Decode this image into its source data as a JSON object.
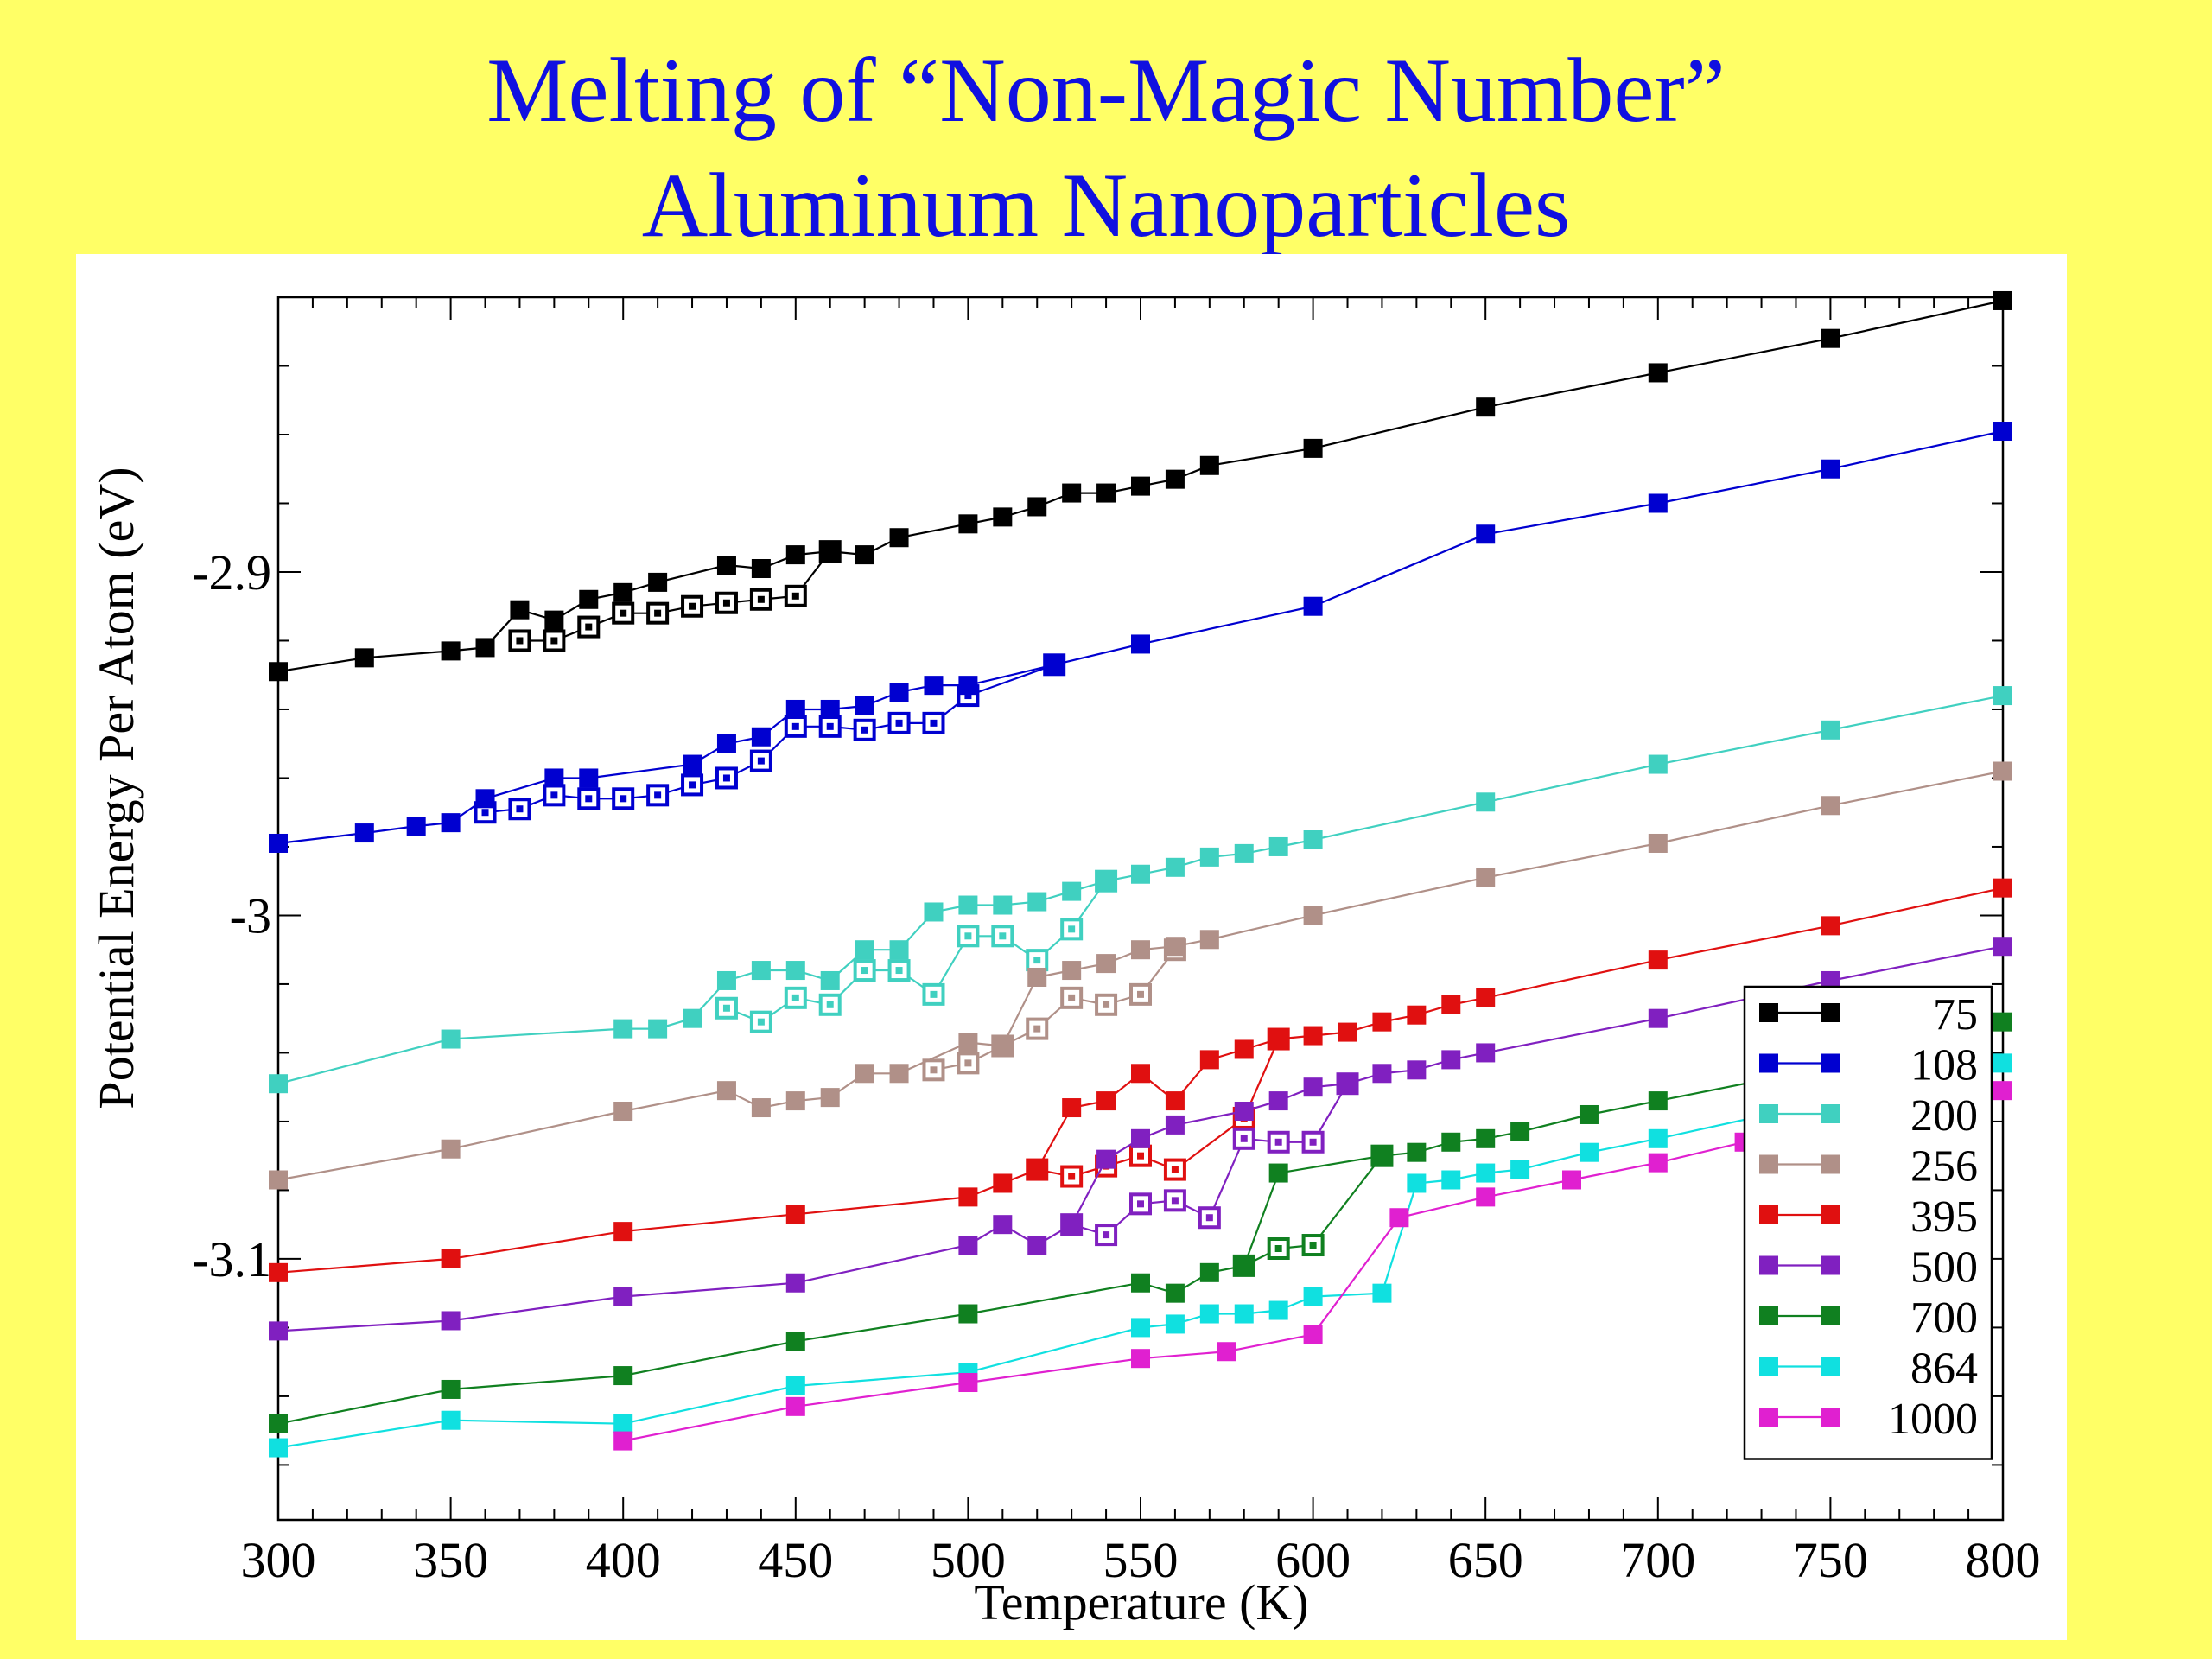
{
  "slide": {
    "title_line1": "Melting of “Non-Magic Number”",
    "title_line2": "Aluminum Nanoparticles",
    "background_color": "#ffff66",
    "title_color": "#1010e0"
  },
  "chart_data": {
    "type": "line",
    "xlabel": "Temperature (K)",
    "ylabel": "Potential Energy Per Atom (eV)",
    "xlim": [
      300,
      800
    ],
    "ylim": [
      -3.176,
      -2.82
    ],
    "x_ticks": [
      300,
      350,
      400,
      450,
      500,
      550,
      600,
      650,
      700,
      750,
      800
    ],
    "x_tick_labels": [
      "300",
      "350",
      "400",
      "450",
      "500",
      "550",
      "600",
      "650",
      "700",
      "750",
      "800"
    ],
    "y_ticks": [
      -2.9,
      -3.0,
      -3.1
    ],
    "y_tick_labels": [
      "-2.9",
      "-3",
      "-3.1"
    ],
    "grid": false,
    "legend_position": "bottom-right",
    "marker": "square",
    "series": [
      {
        "name": "75",
        "color": "#000000",
        "points": [
          [
            300,
            -2.929
          ],
          [
            325,
            -2.925
          ],
          [
            350,
            -2.923
          ],
          [
            360,
            -2.922
          ],
          [
            370,
            -2.911
          ],
          [
            380,
            -2.914
          ],
          [
            390,
            -2.908
          ],
          [
            400,
            -2.906
          ],
          [
            410,
            -2.903
          ],
          [
            430,
            -2.898
          ],
          [
            440,
            -2.899
          ],
          [
            450,
            -2.895
          ],
          [
            460,
            -2.894
          ],
          [
            470,
            -2.895
          ],
          [
            480,
            -2.89
          ],
          [
            500,
            -2.886
          ],
          [
            510,
            -2.884
          ],
          [
            520,
            -2.881
          ],
          [
            530,
            -2.877
          ],
          [
            540,
            -2.877
          ],
          [
            550,
            -2.875
          ],
          [
            560,
            -2.873
          ],
          [
            570,
            -2.869
          ],
          [
            600,
            -2.864
          ],
          [
            650,
            -2.852
          ],
          [
            700,
            -2.842
          ],
          [
            750,
            -2.832
          ],
          [
            800,
            -2.821
          ]
        ],
        "alt_points": [
          [
            370,
            -2.92
          ],
          [
            380,
            -2.92
          ],
          [
            390,
            -2.916
          ],
          [
            400,
            -2.912
          ],
          [
            410,
            -2.912
          ],
          [
            420,
            -2.91
          ],
          [
            430,
            -2.909
          ],
          [
            440,
            -2.908
          ],
          [
            450,
            -2.907
          ],
          [
            460,
            -2.894
          ]
        ]
      },
      {
        "name": "108",
        "color": "#0000d0",
        "points": [
          [
            300,
            -2.979
          ],
          [
            325,
            -2.976
          ],
          [
            340,
            -2.974
          ],
          [
            350,
            -2.973
          ],
          [
            360,
            -2.966
          ],
          [
            380,
            -2.96
          ],
          [
            390,
            -2.96
          ],
          [
            420,
            -2.956
          ],
          [
            430,
            -2.95
          ],
          [
            440,
            -2.948
          ],
          [
            450,
            -2.94
          ],
          [
            460,
            -2.94
          ],
          [
            470,
            -2.939
          ],
          [
            480,
            -2.935
          ],
          [
            490,
            -2.933
          ],
          [
            500,
            -2.933
          ],
          [
            525,
            -2.927
          ],
          [
            550,
            -2.921
          ],
          [
            600,
            -2.91
          ],
          [
            650,
            -2.889
          ],
          [
            700,
            -2.88
          ],
          [
            750,
            -2.87
          ],
          [
            800,
            -2.859
          ]
        ],
        "alt_points": [
          [
            360,
            -2.97
          ],
          [
            370,
            -2.969
          ],
          [
            380,
            -2.965
          ],
          [
            390,
            -2.966
          ],
          [
            400,
            -2.966
          ],
          [
            410,
            -2.965
          ],
          [
            420,
            -2.962
          ],
          [
            430,
            -2.96
          ],
          [
            440,
            -2.955
          ],
          [
            450,
            -2.945
          ],
          [
            460,
            -2.945
          ],
          [
            470,
            -2.946
          ],
          [
            480,
            -2.944
          ],
          [
            490,
            -2.944
          ],
          [
            500,
            -2.936
          ],
          [
            525,
            -2.927
          ]
        ]
      },
      {
        "name": "200",
        "color": "#40d0c0",
        "points": [
          [
            300,
            -3.049
          ],
          [
            350,
            -3.036
          ],
          [
            400,
            -3.033
          ],
          [
            410,
            -3.033
          ],
          [
            420,
            -3.03
          ],
          [
            430,
            -3.019
          ],
          [
            440,
            -3.016
          ],
          [
            450,
            -3.016
          ],
          [
            460,
            -3.019
          ],
          [
            470,
            -3.01
          ],
          [
            480,
            -3.01
          ],
          [
            490,
            -2.999
          ],
          [
            500,
            -2.997
          ],
          [
            510,
            -2.997
          ],
          [
            520,
            -2.996
          ],
          [
            530,
            -2.993
          ],
          [
            540,
            -2.99
          ],
          [
            550,
            -2.988
          ],
          [
            560,
            -2.986
          ],
          [
            570,
            -2.983
          ],
          [
            580,
            -2.982
          ],
          [
            590,
            -2.98
          ],
          [
            600,
            -2.978
          ],
          [
            650,
            -2.967
          ],
          [
            700,
            -2.956
          ],
          [
            750,
            -2.946
          ],
          [
            800,
            -2.936
          ]
        ],
        "alt_points": [
          [
            430,
            -3.027
          ],
          [
            440,
            -3.031
          ],
          [
            450,
            -3.024
          ],
          [
            460,
            -3.026
          ],
          [
            470,
            -3.016
          ],
          [
            480,
            -3.016
          ],
          [
            490,
            -3.023
          ],
          [
            500,
            -3.006
          ],
          [
            510,
            -3.006
          ],
          [
            520,
            -3.013
          ],
          [
            530,
            -3.004
          ],
          [
            540,
            -2.99
          ]
        ]
      },
      {
        "name": "256",
        "color": "#b09088",
        "points": [
          [
            300,
            -3.077
          ],
          [
            350,
            -3.068
          ],
          [
            400,
            -3.057
          ],
          [
            430,
            -3.051
          ],
          [
            440,
            -3.056
          ],
          [
            450,
            -3.054
          ],
          [
            460,
            -3.053
          ],
          [
            470,
            -3.046
          ],
          [
            480,
            -3.046
          ],
          [
            500,
            -3.037
          ],
          [
            510,
            -3.038
          ],
          [
            520,
            -3.018
          ],
          [
            530,
            -3.016
          ],
          [
            540,
            -3.014
          ],
          [
            550,
            -3.01
          ],
          [
            560,
            -3.009
          ],
          [
            570,
            -3.007
          ],
          [
            600,
            -3.0
          ],
          [
            650,
            -2.989
          ],
          [
            700,
            -2.979
          ],
          [
            750,
            -2.968
          ],
          [
            800,
            -2.958
          ]
        ],
        "alt_points": [
          [
            490,
            -3.045
          ],
          [
            500,
            -3.043
          ],
          [
            510,
            -3.038
          ],
          [
            520,
            -3.033
          ],
          [
            530,
            -3.024
          ],
          [
            540,
            -3.026
          ],
          [
            550,
            -3.023
          ],
          [
            560,
            -3.01
          ]
        ]
      },
      {
        "name": "395",
        "color": "#e01010",
        "points": [
          [
            300,
            -3.104
          ],
          [
            350,
            -3.1
          ],
          [
            400,
            -3.092
          ],
          [
            450,
            -3.087
          ],
          [
            500,
            -3.082
          ],
          [
            510,
            -3.078
          ],
          [
            520,
            -3.074
          ],
          [
            530,
            -3.056
          ],
          [
            540,
            -3.054
          ],
          [
            550,
            -3.046
          ],
          [
            560,
            -3.054
          ],
          [
            570,
            -3.042
          ],
          [
            580,
            -3.039
          ],
          [
            590,
            -3.036
          ],
          [
            600,
            -3.035
          ],
          [
            610,
            -3.034
          ],
          [
            620,
            -3.031
          ],
          [
            630,
            -3.029
          ],
          [
            640,
            -3.026
          ],
          [
            650,
            -3.024
          ],
          [
            700,
            -3.013
          ],
          [
            750,
            -3.003
          ],
          [
            800,
            -2.992
          ]
        ],
        "alt_points": [
          [
            520,
            -3.074
          ],
          [
            530,
            -3.076
          ],
          [
            540,
            -3.073
          ],
          [
            550,
            -3.07
          ],
          [
            560,
            -3.074
          ],
          [
            580,
            -3.059
          ],
          [
            590,
            -3.036
          ]
        ]
      },
      {
        "name": "500",
        "color": "#8020c0",
        "points": [
          [
            300,
            -3.121
          ],
          [
            350,
            -3.118
          ],
          [
            400,
            -3.111
          ],
          [
            450,
            -3.107
          ],
          [
            500,
            -3.096
          ],
          [
            510,
            -3.09
          ],
          [
            520,
            -3.096
          ],
          [
            530,
            -3.09
          ],
          [
            540,
            -3.071
          ],
          [
            550,
            -3.065
          ],
          [
            560,
            -3.061
          ],
          [
            580,
            -3.057
          ],
          [
            590,
            -3.054
          ],
          [
            600,
            -3.05
          ],
          [
            610,
            -3.049
          ],
          [
            620,
            -3.046
          ],
          [
            630,
            -3.045
          ],
          [
            640,
            -3.042
          ],
          [
            650,
            -3.04
          ],
          [
            700,
            -3.03
          ],
          [
            750,
            -3.019
          ],
          [
            800,
            -3.009
          ]
        ],
        "alt_points": [
          [
            530,
            -3.09
          ],
          [
            540,
            -3.093
          ],
          [
            550,
            -3.084
          ],
          [
            560,
            -3.083
          ],
          [
            570,
            -3.088
          ],
          [
            580,
            -3.065
          ],
          [
            590,
            -3.066
          ],
          [
            600,
            -3.066
          ],
          [
            610,
            -3.049
          ]
        ]
      },
      {
        "name": "700",
        "color": "#108020",
        "points": [
          [
            300,
            -3.148
          ],
          [
            350,
            -3.138
          ],
          [
            400,
            -3.134
          ],
          [
            450,
            -3.124
          ],
          [
            500,
            -3.116
          ],
          [
            550,
            -3.107
          ],
          [
            560,
            -3.11
          ],
          [
            570,
            -3.104
          ],
          [
            580,
            -3.102
          ],
          [
            590,
            -3.075
          ],
          [
            620,
            -3.07
          ],
          [
            630,
            -3.069
          ],
          [
            640,
            -3.066
          ],
          [
            650,
            -3.065
          ],
          [
            660,
            -3.063
          ],
          [
            680,
            -3.058
          ],
          [
            700,
            -3.054
          ],
          [
            750,
            -3.044
          ],
          [
            800,
            -3.031
          ]
        ],
        "alt_points": [
          [
            580,
            -3.102
          ],
          [
            590,
            -3.097
          ],
          [
            600,
            -3.096
          ],
          [
            620,
            -3.07
          ]
        ]
      },
      {
        "name": "864",
        "color": "#10e0e0",
        "points": [
          [
            300,
            -3.155
          ],
          [
            350,
            -3.147
          ],
          [
            400,
            -3.148
          ],
          [
            450,
            -3.137
          ],
          [
            500,
            -3.133
          ],
          [
            550,
            -3.12
          ],
          [
            560,
            -3.119
          ],
          [
            570,
            -3.116
          ],
          [
            580,
            -3.116
          ],
          [
            590,
            -3.115
          ],
          [
            600,
            -3.111
          ],
          [
            620,
            -3.11
          ],
          [
            630,
            -3.078
          ],
          [
            640,
            -3.077
          ],
          [
            650,
            -3.075
          ],
          [
            660,
            -3.074
          ],
          [
            680,
            -3.069
          ],
          [
            700,
            -3.065
          ],
          [
            750,
            -3.054
          ],
          [
            800,
            -3.043
          ]
        ]
      },
      {
        "name": "1000",
        "color": "#e020d0",
        "points": [
          [
            400,
            -3.153
          ],
          [
            450,
            -3.143
          ],
          [
            500,
            -3.136
          ],
          [
            550,
            -3.129
          ],
          [
            575,
            -3.127
          ],
          [
            600,
            -3.122
          ],
          [
            625,
            -3.088
          ],
          [
            650,
            -3.082
          ],
          [
            675,
            -3.077
          ],
          [
            700,
            -3.072
          ],
          [
            725,
            -3.066
          ],
          [
            750,
            -3.061
          ],
          [
            800,
            -3.051
          ]
        ]
      }
    ]
  }
}
